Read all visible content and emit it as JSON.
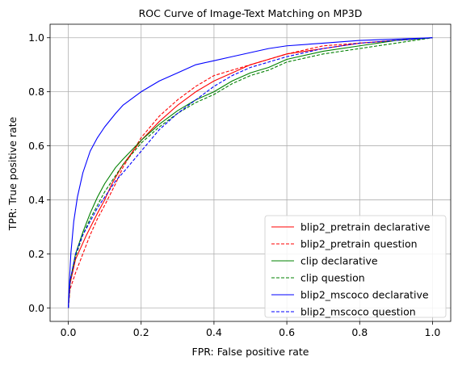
{
  "chart_data": {
    "type": "line",
    "title": "ROC Curve of Image-Text Matching on MP3D",
    "xlabel": "FPR: False positive rate",
    "ylabel": "TPR: True positive rate",
    "xlim": [
      -0.05,
      1.05
    ],
    "ylim": [
      -0.05,
      1.05
    ],
    "xticks": [
      "0.0",
      "0.2",
      "0.4",
      "0.6",
      "0.8",
      "1.0"
    ],
    "yticks": [
      "0.0",
      "0.2",
      "0.4",
      "0.6",
      "0.8",
      "1.0"
    ],
    "grid": true,
    "legend_position": "lower-right",
    "series": [
      {
        "name": "blip2_pretrain declarative",
        "color": "#ff0000",
        "dash": "solid",
        "points": [
          [
            0,
            0
          ],
          [
            0.005,
            0.09
          ],
          [
            0.02,
            0.18
          ],
          [
            0.05,
            0.27
          ],
          [
            0.08,
            0.35
          ],
          [
            0.1,
            0.4
          ],
          [
            0.12,
            0.46
          ],
          [
            0.15,
            0.53
          ],
          [
            0.2,
            0.62
          ],
          [
            0.25,
            0.69
          ],
          [
            0.3,
            0.75
          ],
          [
            0.35,
            0.8
          ],
          [
            0.4,
            0.84
          ],
          [
            0.45,
            0.87
          ],
          [
            0.5,
            0.9
          ],
          [
            0.55,
            0.92
          ],
          [
            0.6,
            0.94
          ],
          [
            0.7,
            0.96
          ],
          [
            0.8,
            0.98
          ],
          [
            0.9,
            0.99
          ],
          [
            1,
            1
          ]
        ]
      },
      {
        "name": "blip2_pretrain question",
        "color": "#ff0000",
        "dash": "dashed",
        "points": [
          [
            0,
            0
          ],
          [
            0.005,
            0.07
          ],
          [
            0.02,
            0.13
          ],
          [
            0.04,
            0.2
          ],
          [
            0.06,
            0.27
          ],
          [
            0.08,
            0.33
          ],
          [
            0.1,
            0.38
          ],
          [
            0.13,
            0.46
          ],
          [
            0.15,
            0.52
          ],
          [
            0.2,
            0.63
          ],
          [
            0.25,
            0.71
          ],
          [
            0.3,
            0.77
          ],
          [
            0.35,
            0.82
          ],
          [
            0.4,
            0.86
          ],
          [
            0.45,
            0.88
          ],
          [
            0.5,
            0.9
          ],
          [
            0.55,
            0.92
          ],
          [
            0.6,
            0.94
          ],
          [
            0.7,
            0.97
          ],
          [
            0.8,
            0.98
          ],
          [
            0.9,
            0.99
          ],
          [
            1,
            1
          ]
        ]
      },
      {
        "name": "clip declarative",
        "color": "#008000",
        "dash": "solid",
        "points": [
          [
            0,
            0
          ],
          [
            0.005,
            0.1
          ],
          [
            0.02,
            0.2
          ],
          [
            0.04,
            0.28
          ],
          [
            0.06,
            0.35
          ],
          [
            0.08,
            0.41
          ],
          [
            0.1,
            0.46
          ],
          [
            0.13,
            0.52
          ],
          [
            0.15,
            0.55
          ],
          [
            0.2,
            0.62
          ],
          [
            0.25,
            0.68
          ],
          [
            0.3,
            0.73
          ],
          [
            0.35,
            0.77
          ],
          [
            0.4,
            0.8
          ],
          [
            0.45,
            0.84
          ],
          [
            0.5,
            0.87
          ],
          [
            0.55,
            0.89
          ],
          [
            0.6,
            0.92
          ],
          [
            0.7,
            0.95
          ],
          [
            0.8,
            0.97
          ],
          [
            0.9,
            0.99
          ],
          [
            1,
            1
          ]
        ]
      },
      {
        "name": "clip question",
        "color": "#008000",
        "dash": "dashed",
        "points": [
          [
            0,
            0
          ],
          [
            0.005,
            0.1
          ],
          [
            0.02,
            0.19
          ],
          [
            0.04,
            0.27
          ],
          [
            0.06,
            0.33
          ],
          [
            0.08,
            0.38
          ],
          [
            0.1,
            0.43
          ],
          [
            0.13,
            0.49
          ],
          [
            0.15,
            0.53
          ],
          [
            0.2,
            0.61
          ],
          [
            0.25,
            0.67
          ],
          [
            0.3,
            0.72
          ],
          [
            0.35,
            0.76
          ],
          [
            0.4,
            0.79
          ],
          [
            0.45,
            0.83
          ],
          [
            0.5,
            0.86
          ],
          [
            0.55,
            0.88
          ],
          [
            0.6,
            0.91
          ],
          [
            0.7,
            0.94
          ],
          [
            0.8,
            0.96
          ],
          [
            0.9,
            0.98
          ],
          [
            1,
            1
          ]
        ]
      },
      {
        "name": "blip2_mscoco declarative",
        "color": "#0000ff",
        "dash": "solid",
        "points": [
          [
            0,
            0
          ],
          [
            0.003,
            0.1
          ],
          [
            0.007,
            0.2
          ],
          [
            0.015,
            0.32
          ],
          [
            0.025,
            0.41
          ],
          [
            0.04,
            0.5
          ],
          [
            0.06,
            0.58
          ],
          [
            0.08,
            0.63
          ],
          [
            0.1,
            0.67
          ],
          [
            0.13,
            0.72
          ],
          [
            0.15,
            0.75
          ],
          [
            0.18,
            0.78
          ],
          [
            0.2,
            0.8
          ],
          [
            0.25,
            0.84
          ],
          [
            0.3,
            0.87
          ],
          [
            0.35,
            0.9
          ],
          [
            0.4,
            0.915
          ],
          [
            0.45,
            0.93
          ],
          [
            0.5,
            0.945
          ],
          [
            0.55,
            0.96
          ],
          [
            0.6,
            0.97
          ],
          [
            0.7,
            0.98
          ],
          [
            0.8,
            0.99
          ],
          [
            0.9,
            0.995
          ],
          [
            1,
            1
          ]
        ]
      },
      {
        "name": "blip2_mscoco question",
        "color": "#0000ff",
        "dash": "dashed",
        "points": [
          [
            0,
            0
          ],
          [
            0.005,
            0.1
          ],
          [
            0.02,
            0.2
          ],
          [
            0.04,
            0.27
          ],
          [
            0.06,
            0.32
          ],
          [
            0.08,
            0.37
          ],
          [
            0.1,
            0.41
          ],
          [
            0.13,
            0.47
          ],
          [
            0.15,
            0.5
          ],
          [
            0.2,
            0.58
          ],
          [
            0.25,
            0.66
          ],
          [
            0.3,
            0.72
          ],
          [
            0.35,
            0.77
          ],
          [
            0.4,
            0.82
          ],
          [
            0.45,
            0.86
          ],
          [
            0.5,
            0.89
          ],
          [
            0.55,
            0.91
          ],
          [
            0.6,
            0.93
          ],
          [
            0.7,
            0.96
          ],
          [
            0.8,
            0.98
          ],
          [
            0.9,
            0.99
          ],
          [
            1,
            1
          ]
        ]
      }
    ]
  }
}
